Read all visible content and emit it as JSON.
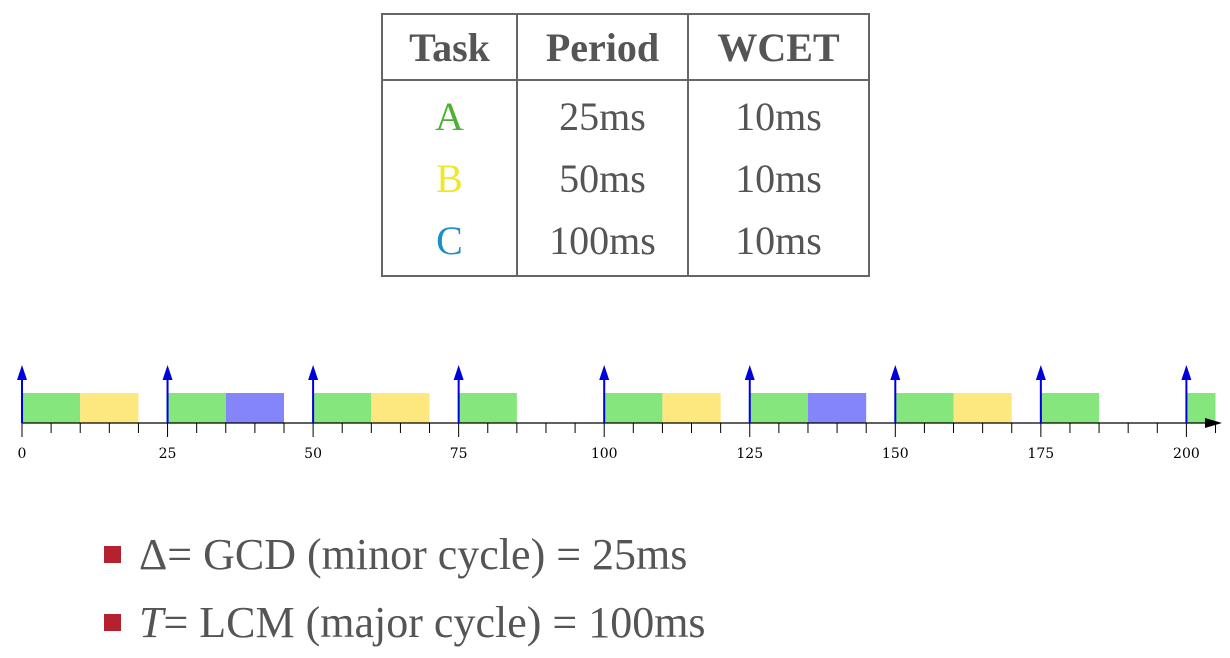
{
  "table": {
    "headers": [
      "Task",
      "Period",
      "WCET"
    ],
    "rows": [
      {
        "task": "A",
        "period": "25ms",
        "wcet": "10ms",
        "color": "#4cb030"
      },
      {
        "task": "B",
        "period": "50ms",
        "wcet": "10ms",
        "color": "#f0e62a"
      },
      {
        "task": "C",
        "period": "100ms",
        "wcet": "10ms",
        "color": "#1e8fc6"
      }
    ]
  },
  "chart_data": {
    "type": "gantt",
    "x_unit": "ms",
    "xlim": [
      0,
      205
    ],
    "tick_labels": [
      "0",
      "25",
      "50",
      "75",
      "100",
      "125",
      "150",
      "175",
      "200"
    ],
    "tick_values": [
      0,
      25,
      50,
      75,
      100,
      125,
      150,
      175,
      200
    ],
    "minor_tick_step": 5,
    "release_arrows": [
      0,
      25,
      50,
      75,
      100,
      125,
      150,
      175,
      200
    ],
    "blocks": [
      {
        "task": "A",
        "start": 0,
        "end": 10,
        "color": "#84e67c"
      },
      {
        "task": "B",
        "start": 10,
        "end": 20,
        "color": "#fde880"
      },
      {
        "task": "A",
        "start": 25,
        "end": 35,
        "color": "#84e67c"
      },
      {
        "task": "C",
        "start": 35,
        "end": 45,
        "color": "#8585fa"
      },
      {
        "task": "A",
        "start": 50,
        "end": 60,
        "color": "#84e67c"
      },
      {
        "task": "B",
        "start": 60,
        "end": 70,
        "color": "#fde880"
      },
      {
        "task": "A",
        "start": 75,
        "end": 85,
        "color": "#84e67c"
      },
      {
        "task": "A",
        "start": 100,
        "end": 110,
        "color": "#84e67c"
      },
      {
        "task": "B",
        "start": 110,
        "end": 120,
        "color": "#fde880"
      },
      {
        "task": "A",
        "start": 125,
        "end": 135,
        "color": "#84e67c"
      },
      {
        "task": "C",
        "start": 135,
        "end": 145,
        "color": "#8585fa"
      },
      {
        "task": "A",
        "start": 150,
        "end": 160,
        "color": "#84e67c"
      },
      {
        "task": "B",
        "start": 160,
        "end": 170,
        "color": "#fde880"
      },
      {
        "task": "A",
        "start": 175,
        "end": 185,
        "color": "#84e67c"
      },
      {
        "task": "A",
        "start": 200,
        "end": 205,
        "color": "#84e67c"
      }
    ],
    "arrow_color": "#0000dd"
  },
  "bullets": {
    "marker_color": "#b5212f",
    "line1": {
      "symbol": "Δ",
      "text": " = GCD (minor cycle) = 25ms"
    },
    "line2": {
      "symbol": "T",
      "text": " = LCM (major cycle) = 100ms"
    }
  }
}
